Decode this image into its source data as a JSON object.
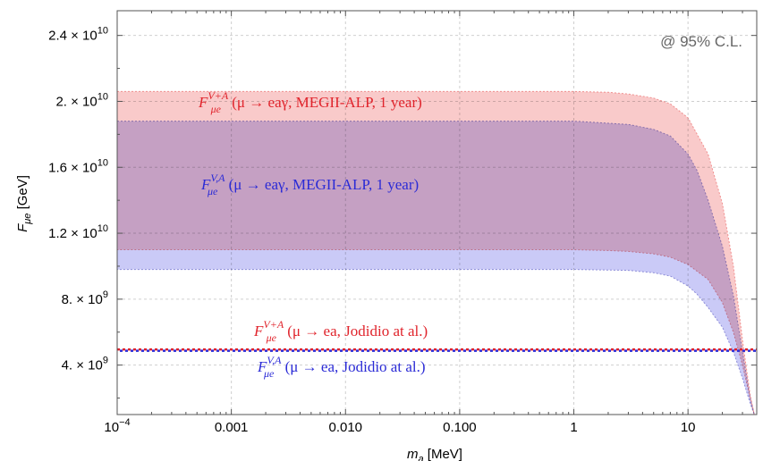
{
  "chart_data": {
    "type": "area",
    "title": "",
    "xlabel": "m_a [MeV]",
    "ylabel": "F_μe [GeV]",
    "x_scale": "log",
    "xlim": [
      0.0001,
      40
    ],
    "ylim": [
      1000000000.0,
      25500000000.0
    ],
    "grid": true,
    "x_ticks": [
      {
        "value": 0.0001,
        "label": "10",
        "exp": "−4"
      },
      {
        "value": 0.001,
        "label": "0.001"
      },
      {
        "value": 0.01,
        "label": "0.010"
      },
      {
        "value": 0.1,
        "label": "0.100"
      },
      {
        "value": 1,
        "label": "1"
      },
      {
        "value": 10,
        "label": "10"
      }
    ],
    "y_ticks": [
      {
        "value": 4000000000.0,
        "mant": "4. × 10",
        "exp": "9"
      },
      {
        "value": 8000000000.0,
        "mant": "8. × 10",
        "exp": "9"
      },
      {
        "value": 12000000000.0,
        "mant": "1.2 × 10",
        "exp": "10"
      },
      {
        "value": 16000000000.0,
        "mant": "1.6 × 10",
        "exp": "10"
      },
      {
        "value": 20000000000.0,
        "mant": "2. × 10",
        "exp": "10"
      },
      {
        "value": 24000000000.0,
        "mant": "2.4 × 10",
        "exp": "10"
      }
    ],
    "cl_note": "@ 95% C.L.",
    "series": [
      {
        "kind": "band",
        "color": "#f7b3b3",
        "edge_color": "#f08f8f",
        "x": [
          0.0001,
          1,
          2,
          3,
          5,
          7,
          10,
          15,
          20,
          25,
          30,
          35,
          38
        ],
        "upper": [
          20600000000.0,
          20600000000.0,
          20550000000.0,
          20450000000.0,
          20200000000.0,
          19850000000.0,
          19000000000.0,
          16800000000.0,
          13800000000.0,
          10000000000.0,
          5500000000.0,
          2200000000.0,
          1000000000.0
        ],
        "lower": [
          11000000000.0,
          11000000000.0,
          10950000000.0,
          10900000000.0,
          10750000000.0,
          10550000000.0,
          10100000000.0,
          9200000000.0,
          7800000000.0,
          6000000000.0,
          4000000000.0,
          2000000000.0,
          1000000000.0
        ]
      },
      {
        "kind": "band",
        "color": "#b4b4f4",
        "edge_color": "#8c8cd8",
        "x": [
          0.0001,
          1,
          3,
          5,
          7,
          10,
          12,
          15,
          20,
          25,
          30,
          35,
          38
        ],
        "upper": [
          18800000000.0,
          18800000000.0,
          18600000000.0,
          18300000000.0,
          17900000000.0,
          16800000000.0,
          15800000000.0,
          14000000000.0,
          11200000000.0,
          8200000000.0,
          4800000000.0,
          2000000000.0,
          1000000000.0
        ],
        "lower": [
          9800000000.0,
          9800000000.0,
          9750000000.0,
          9600000000.0,
          9400000000.0,
          8800000000.0,
          8300000000.0,
          7500000000.0,
          6300000000.0,
          4800000000.0,
          3200000000.0,
          1700000000.0,
          1000000000.0
        ]
      },
      {
        "kind": "line",
        "color": "#e0242c",
        "value": 4950000000.0,
        "dash": "3 3"
      },
      {
        "kind": "line",
        "color": "#2b2bd6",
        "value": 4950000000.0,
        "dash": "3 3",
        "offset": 1.5
      }
    ],
    "annotations": [
      {
        "main": "F",
        "sub": "μe",
        "sup": "V+A",
        "text": " (μ → eaγ, MEGII-ALP, 1 year)",
        "color": "#e0242c"
      },
      {
        "main": "F",
        "sub": "μe",
        "sup": "V,A",
        "text": " (μ → eaγ, MEGII-ALP, 1 year)",
        "color": "#2b2bd6"
      },
      {
        "main": "F",
        "sub": "μe",
        "sup": "V+A",
        "text": " (μ → ea, Jodidio at al.)",
        "color": "#e0242c"
      },
      {
        "main": "F",
        "sub": "μe",
        "sup": "V,A",
        "text": " (μ → ea, Jodidio at al.)",
        "color": "#2b2bd6"
      }
    ]
  }
}
